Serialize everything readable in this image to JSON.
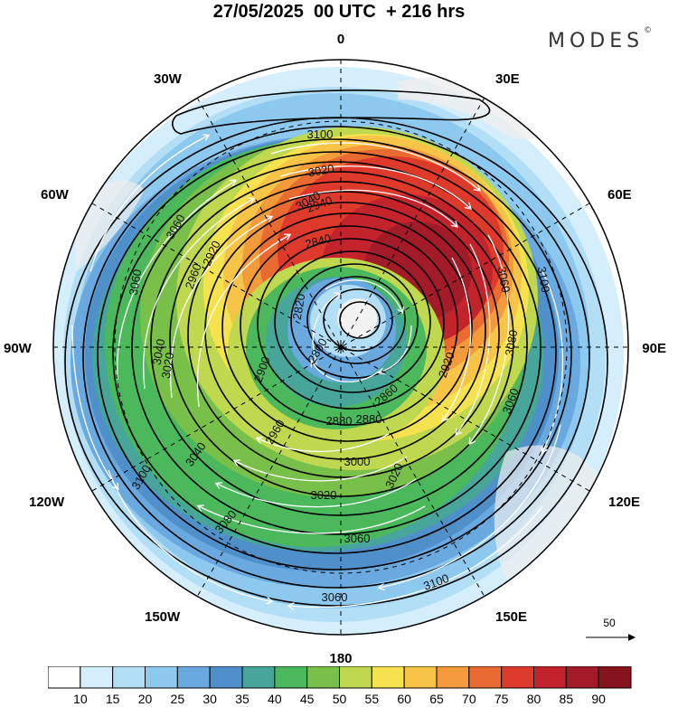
{
  "title": "27/05/2025  00 UTC  + 216 hrs",
  "brand": "MODES",
  "brand_mark": "©",
  "longitude_labels": {
    "n": "0",
    "s": "180",
    "e": "90E",
    "w": "90W",
    "e30": "30E",
    "e60": "60E",
    "e120": "120E",
    "e150": "150E",
    "w30": "30W",
    "w60": "60W",
    "w120": "120W",
    "w150": "150W"
  },
  "contour_labels": [
    "3100",
    "3020",
    "3040",
    "3060",
    "2940",
    "2920",
    "2960",
    "3060",
    "2840",
    "2820",
    "2800",
    "2880",
    "2900",
    "2860",
    "2880",
    "2920",
    "2960",
    "3000",
    "3020",
    "3040",
    "3060",
    "3080",
    "3100",
    "3080",
    "3060",
    "3020",
    "3100",
    "3020",
    "3040",
    "3060",
    "3100",
    "3060"
  ],
  "vector_reference": {
    "label": "50"
  },
  "colorbar": {
    "ticks": [
      "10",
      "15",
      "20",
      "25",
      "30",
      "35",
      "40",
      "45",
      "50",
      "55",
      "60",
      "65",
      "70",
      "75",
      "80",
      "85",
      "90"
    ],
    "colors": [
      "#ffffff",
      "#d4eefb",
      "#b3dff6",
      "#8dc8ef",
      "#6aa9df",
      "#4f8fca",
      "#48a59a",
      "#4cb85c",
      "#79c04a",
      "#bfd84f",
      "#f6e24e",
      "#f8c448",
      "#f39a3b",
      "#ea6b31",
      "#dd3a2b",
      "#c3242c",
      "#a31b28",
      "#85141f"
    ]
  }
}
